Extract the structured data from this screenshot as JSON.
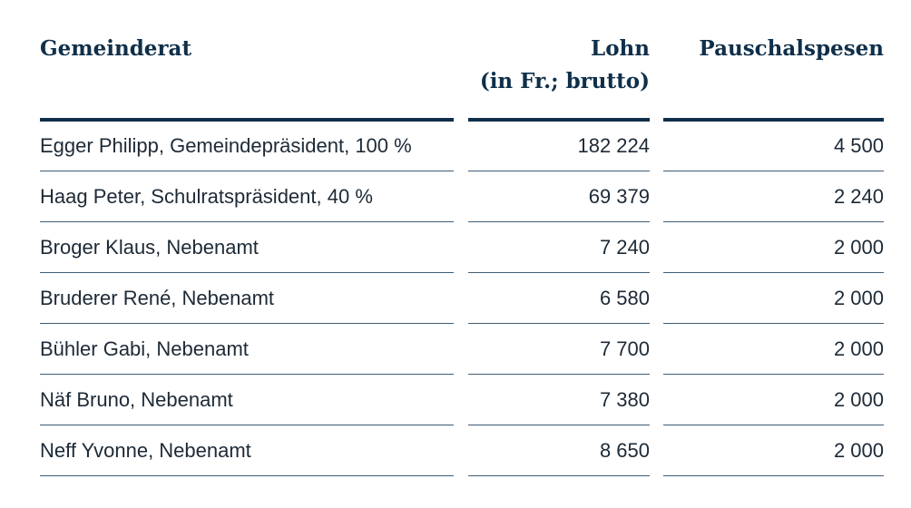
{
  "table": {
    "header": [
      "Gemeinderat",
      "Lohn\n(in Fr.; brutto)",
      "Pauschalspesen"
    ],
    "rows": [
      [
        "Egger Philipp, Gemeindepräsident, 100 %",
        "182 224",
        "4 500"
      ],
      [
        "Haag Peter, Schulratspräsident, 40 %",
        "69 379",
        "2 240"
      ],
      [
        "Broger Klaus, Nebenamt",
        "7 240",
        "2 000"
      ],
      [
        "Bruderer René, Nebenamt",
        "6 580",
        "2 000"
      ],
      [
        "Bühler Gabi, Nebenamt",
        "7 700",
        "2 000"
      ],
      [
        "Näf Bruno, Nebenamt",
        "7 380",
        "2 000"
      ],
      [
        "Neff Yvonne, Nebenamt",
        "8 650",
        "2 000"
      ]
    ]
  }
}
